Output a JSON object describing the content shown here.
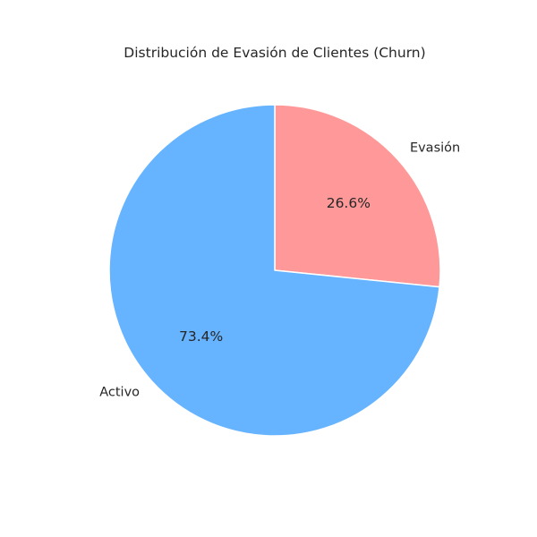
{
  "chart_data": {
    "type": "pie",
    "title": "Distribución de Evasión de Clientes (Churn)",
    "slices": [
      {
        "label": "Evasión",
        "value": 26.6,
        "pct_label": "26.6%",
        "color": "#ff9999"
      },
      {
        "label": "Activo",
        "value": 73.4,
        "pct_label": "73.4%",
        "color": "#66b3ff"
      }
    ],
    "start_angle_deg": 90,
    "direction": "clockwise",
    "edge_color": "#ffffff",
    "legend": "none"
  }
}
